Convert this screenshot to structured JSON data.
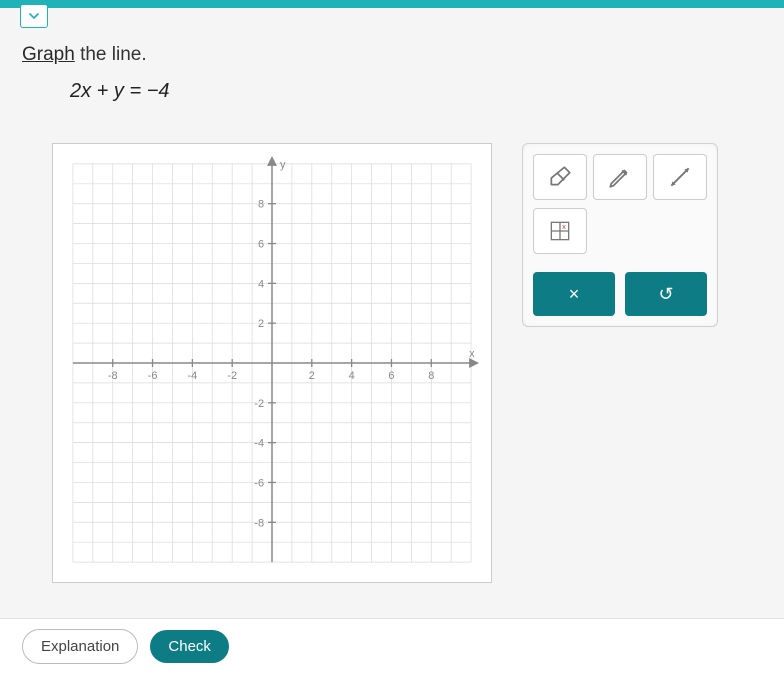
{
  "prompt": {
    "link_word": "Graph",
    "rest": " the line."
  },
  "equation": "2x + y = −4",
  "graph": {
    "type": "cartesian-grid",
    "x_axis_label": "x",
    "y_axis_label": "y",
    "xlim": [
      -10,
      10
    ],
    "ylim": [
      -10,
      10
    ],
    "major_tick_step": 2,
    "minor_tick_step": 1,
    "tick_labels_y": [
      "8",
      "6",
      "4",
      "2",
      "-2",
      "-4",
      "-6",
      "-8"
    ],
    "tick_labels_x": [
      "-8",
      "-6",
      "-4",
      "-2",
      "2",
      "4",
      "6",
      "8"
    ],
    "grid_color": "#d9d9d9",
    "axis_color": "#888888",
    "background_color": "#ffffff",
    "tick_label_color": "#888888",
    "tick_label_fontsize": 11
  },
  "tools": {
    "eraser": "eraser-icon",
    "pencil": "pencil-icon",
    "line": "line-icon",
    "grid_point": "grid-point-icon"
  },
  "actions": {
    "clear_label": "×",
    "undo_label": "↺"
  },
  "footer": {
    "explanation_label": "Explanation",
    "check_label": "Check"
  },
  "colors": {
    "accent": "#0d7c84",
    "teal_light": "#1fb2b8",
    "panel_bg": "#fafafa",
    "border": "#cccccc"
  }
}
